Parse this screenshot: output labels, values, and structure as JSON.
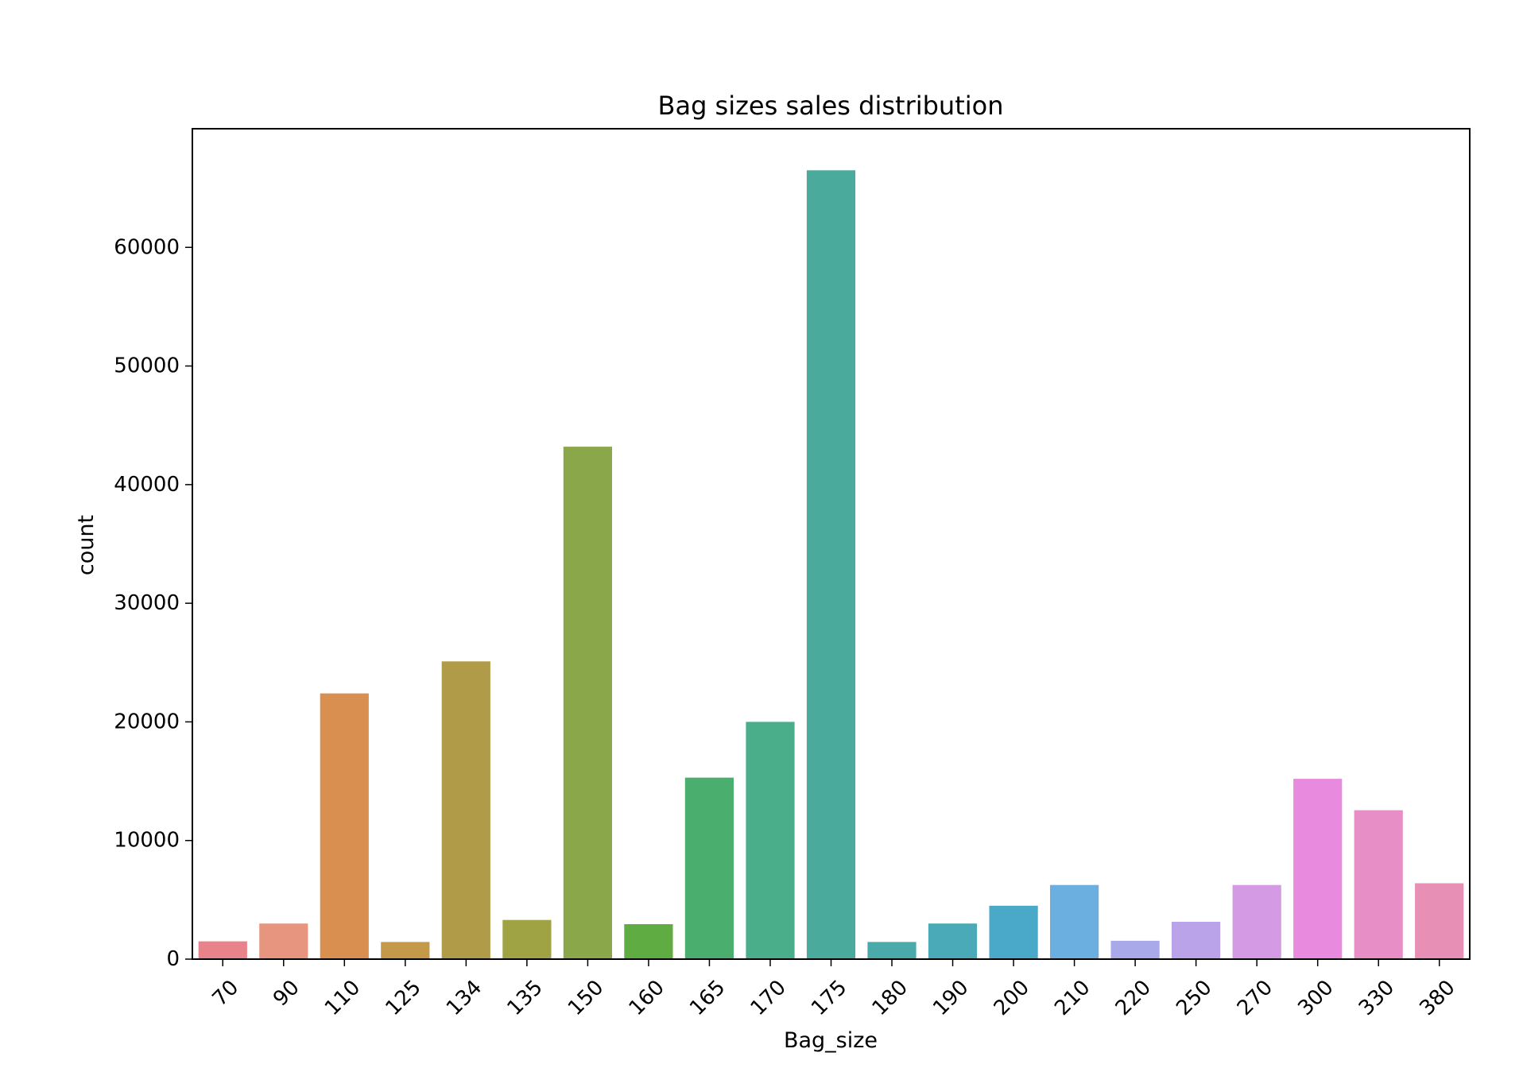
{
  "chart_data": {
    "type": "bar",
    "title": "Bag sizes sales distribution",
    "xlabel": "Bag_size",
    "ylabel": "count",
    "categories": [
      "70",
      "90",
      "110",
      "125",
      "134",
      "135",
      "150",
      "160",
      "165",
      "170",
      "175",
      "180",
      "190",
      "200",
      "210",
      "220",
      "250",
      "270",
      "300",
      "330",
      "380"
    ],
    "values": [
      1500,
      3000,
      22400,
      1450,
      25100,
      3300,
      43200,
      2950,
      15300,
      20000,
      66500,
      1450,
      3000,
      4500,
      6250,
      1550,
      3150,
      6250,
      15200,
      12550,
      6400
    ],
    "colors": [
      "#E8838C",
      "#E8957F",
      "#D98F4F",
      "#C49A4A",
      "#B09B48",
      "#9FA344",
      "#8AA84A",
      "#5FAD42",
      "#4AAE6E",
      "#4AAE8A",
      "#4AAB9C",
      "#4AA9A9",
      "#4AAAB8",
      "#4AA8C8",
      "#6BAEE0",
      "#A9A8E8",
      "#BAA3E8",
      "#D49AE4",
      "#E88BDE",
      "#E78EC7",
      "#E78FB4"
    ],
    "ylim": [
      0,
      70000
    ],
    "yticks": [
      "0",
      "10000",
      "20000",
      "30000",
      "40000",
      "50000",
      "60000"
    ],
    "grid": false,
    "legend": "none"
  }
}
